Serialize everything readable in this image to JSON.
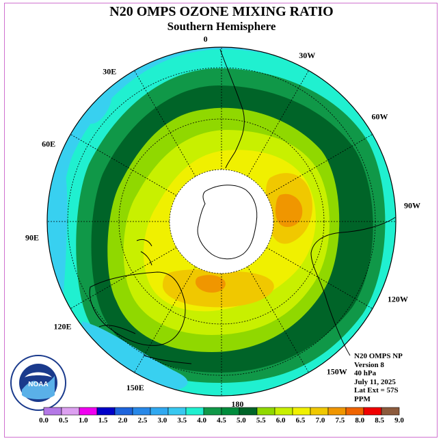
{
  "title": "N20 OMPS OZONE MIXING RATIO",
  "subtitle": "Southern Hemisphere",
  "longitude_labels": [
    {
      "text": "90W",
      "angle": 90
    },
    {
      "text": "60W",
      "angle": 60
    },
    {
      "text": "30W",
      "angle": 30
    },
    {
      "text": "0",
      "angle": 0
    },
    {
      "text": "30E",
      "angle": -30
    },
    {
      "text": "60E",
      "angle": -60
    },
    {
      "text": "90E",
      "angle": -90
    },
    {
      "text": "120E",
      "angle": -120
    },
    {
      "text": "150E",
      "angle": -150
    },
    {
      "text": "180",
      "angle": 180
    },
    {
      "text": "150W",
      "angle": 150
    },
    {
      "text": "120W",
      "angle": 120
    }
  ],
  "info": {
    "line1": "N20 OMPS NP",
    "line2": "Version 8",
    "line3": "40 hPa",
    "line4": "July 11, 2025",
    "line5": "Lat Ext = 57S",
    "line6": "PPM"
  },
  "colorbar": {
    "ticks": [
      "0.0",
      "0.5",
      "1.0",
      "1.5",
      "2.0",
      "2.5",
      "3.0",
      "3.5",
      "4.0",
      "4.5",
      "5.0",
      "5.5",
      "6.0",
      "6.5",
      "7.0",
      "7.5",
      "8.0",
      "8.5",
      "9.0"
    ],
    "colors": [
      "#b478e6",
      "#dca0f0",
      "#f000f0",
      "#0000c8",
      "#1e50dc",
      "#2888e8",
      "#30a8f0",
      "#38d0f0",
      "#20f0d0",
      "#109040",
      "#108838",
      "#006428",
      "#90d800",
      "#c8f000",
      "#f0f000",
      "#f0c800",
      "#f09600",
      "#f06400",
      "#f00000",
      "#8c5a3c"
    ],
    "band_colors": [
      "#b478e6",
      "#dca0f0",
      "#f000f0",
      "#0000c8",
      "#1e64dc",
      "#2888e8",
      "#30a8f0",
      "#38c8f0",
      "#20f0d0",
      "#109848",
      "#008c3c",
      "#006428",
      "#90d800",
      "#c8f000",
      "#f0f000",
      "#f0c800",
      "#f09600",
      "#f06400",
      "#f00000",
      "#8c5a3c"
    ]
  },
  "map_colors": {
    "c35": "#38d0f0",
    "c40": "#20f0d0",
    "c45": "#109848",
    "c50": "#006428",
    "c55": "#90d800",
    "c60": "#c8f000",
    "c65": "#f0f000",
    "c70": "#f0c800",
    "c75": "#f09600",
    "pole": "#ffffff"
  },
  "logo": {
    "text": "NOAA",
    "ring_text": "NATIONAL OCEANIC AND ATMOSPHERIC ADMINISTRATION · U.S. DEPARTMENT OF COMMERCE"
  }
}
